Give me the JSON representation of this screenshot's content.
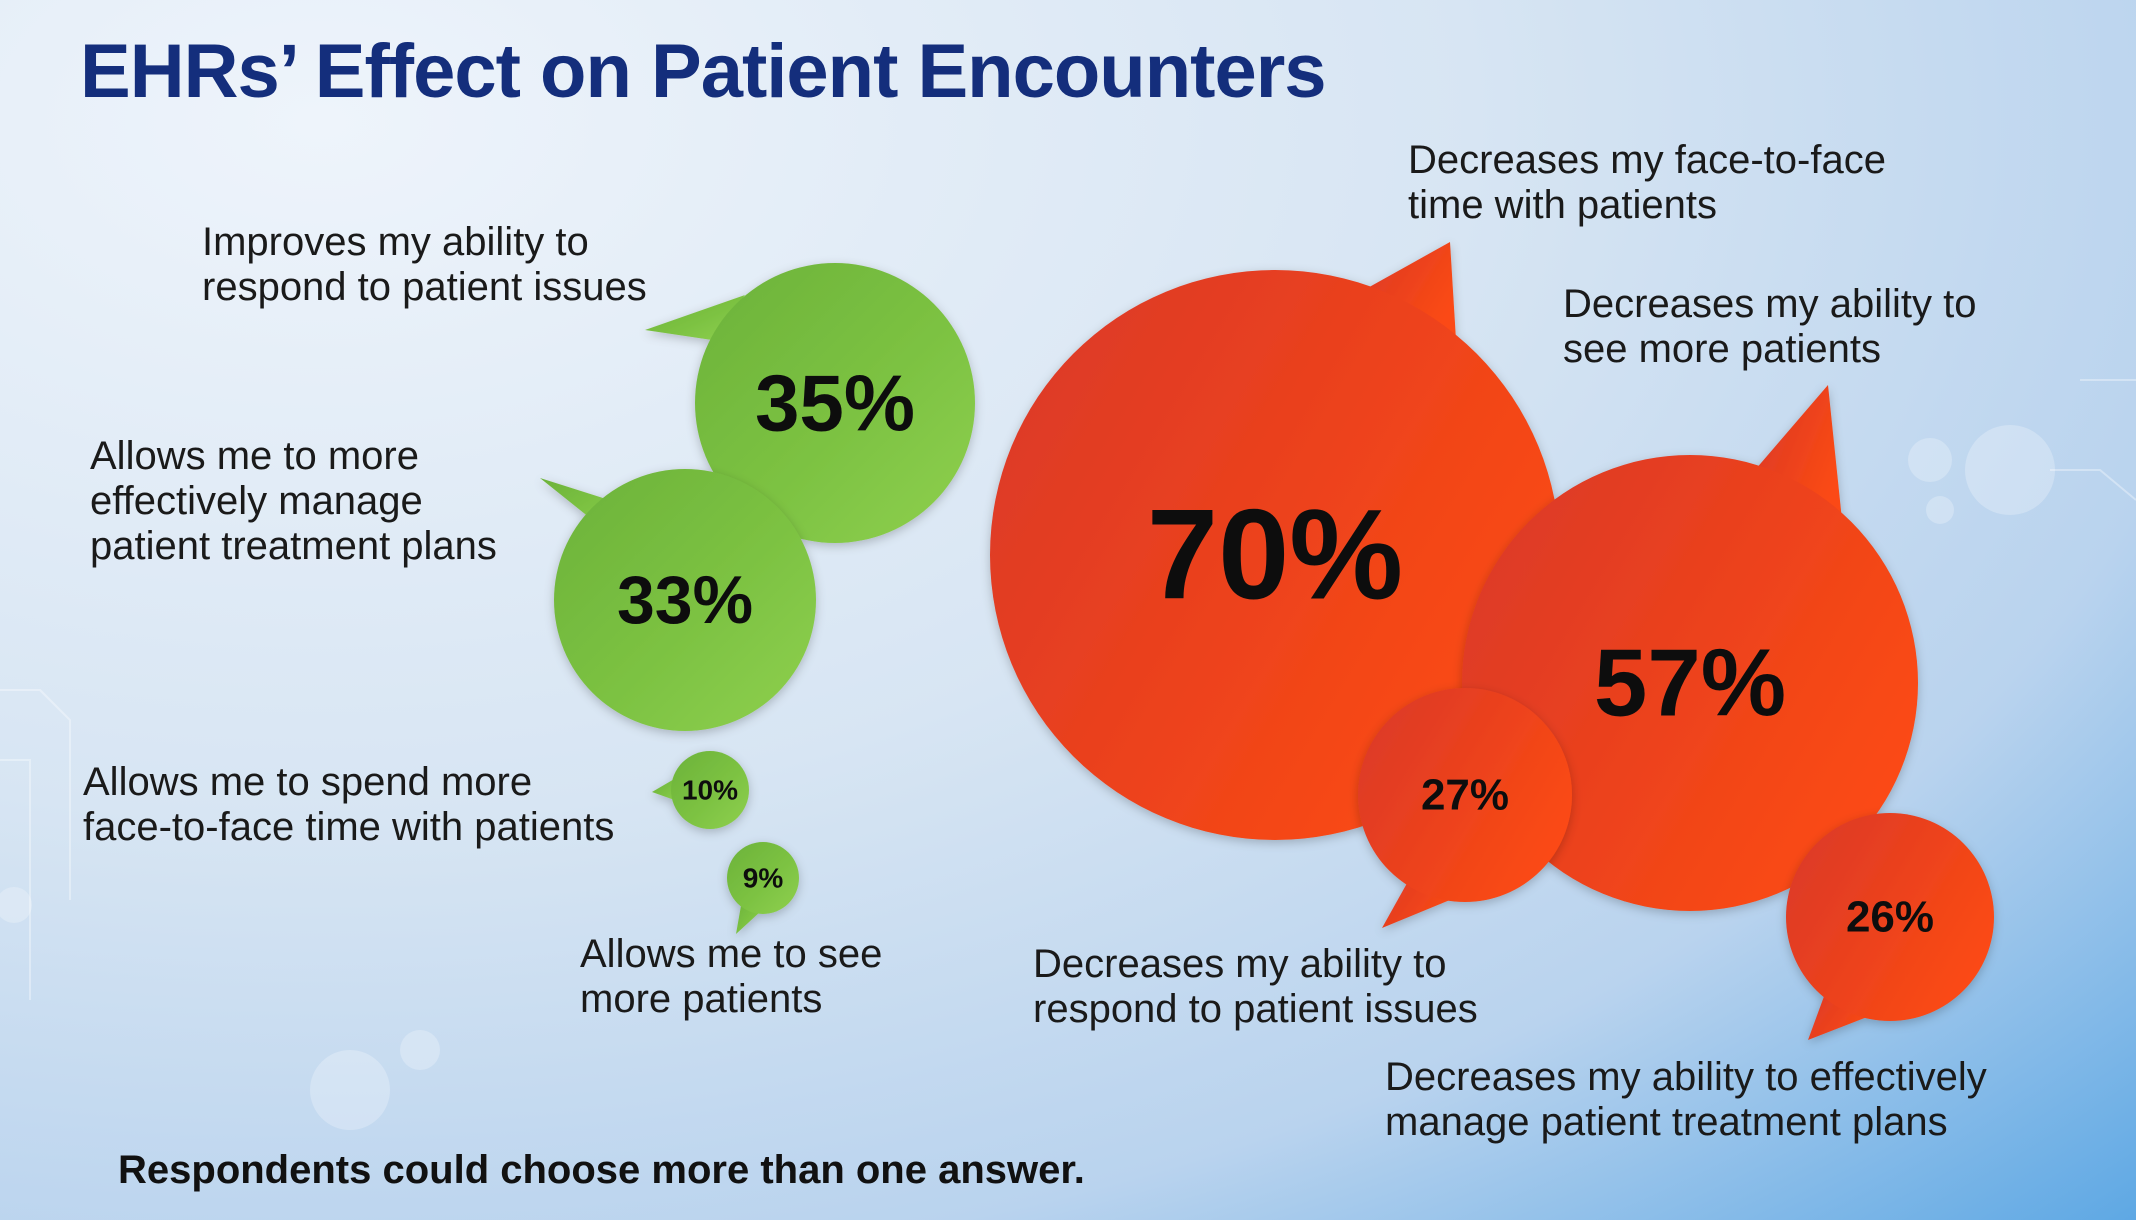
{
  "title": "EHRs’ Effect on Patient Encounters",
  "footnote": "Respondents could choose more than one answer.",
  "colors": {
    "positive": "#7cc242",
    "negative": "#ef4423",
    "title": "#142e7c"
  },
  "chart_data": {
    "type": "bubble",
    "unit": "%",
    "legend": "none",
    "groups": [
      {
        "name": "positive",
        "items": [
          {
            "label_lines": [
              "Improves my ability to",
              "respond to patient issues"
            ],
            "value": 35
          },
          {
            "label_lines": [
              "Allows me to more",
              "effectively manage",
              "patient treatment plans"
            ],
            "value": 33
          },
          {
            "label_lines": [
              "Allows me to spend more",
              "face-to-face time with patients"
            ],
            "value": 10
          },
          {
            "label_lines": [
              "Allows me to see",
              "more patients"
            ],
            "value": 9
          }
        ]
      },
      {
        "name": "negative",
        "items": [
          {
            "label_lines": [
              "Decreases my face-to-face",
              "time with patients"
            ],
            "value": 70
          },
          {
            "label_lines": [
              "Decreases my ability to",
              "see more patients"
            ],
            "value": 57
          },
          {
            "label_lines": [
              "Decreases my ability to",
              "respond to patient issues"
            ],
            "value": 27
          },
          {
            "label_lines": [
              "Decreases my ability to effectively",
              "manage patient treatment plans"
            ],
            "value": 26
          }
        ]
      }
    ]
  }
}
